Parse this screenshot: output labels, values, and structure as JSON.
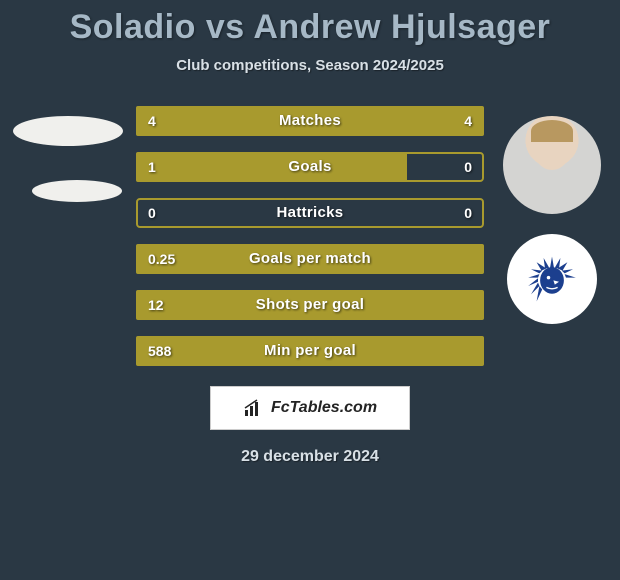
{
  "title": "Soladio vs Andrew Hjulsager",
  "subtitle": "Club competitions, Season 2024/2025",
  "date": "29 december 2024",
  "footer_brand": "FcTables.com",
  "colors": {
    "background": "#2a3844",
    "title": "#a6b8c6",
    "text_light": "#d8e0e6",
    "bar_olive": "#a89a2e",
    "bar_outline": "#a89a2e"
  },
  "stats": [
    {
      "label": "Matches",
      "left_val": "4",
      "right_val": "4",
      "left_pct": 50,
      "right_pct": 50,
      "color": "#a89a2e"
    },
    {
      "label": "Goals",
      "left_val": "1",
      "right_val": "0",
      "left_pct": 78,
      "right_pct": 0,
      "color": "#a89a2e"
    },
    {
      "label": "Hattricks",
      "left_val": "0",
      "right_val": "0",
      "left_pct": 0,
      "right_pct": 0,
      "color": "#a89a2e"
    },
    {
      "label": "Goals per match",
      "left_val": "0.25",
      "right_val": "",
      "left_pct": 100,
      "right_pct": 0,
      "color": "#a89a2e"
    },
    {
      "label": "Shots per goal",
      "left_val": "12",
      "right_val": "",
      "left_pct": 100,
      "right_pct": 0,
      "color": "#a89a2e"
    },
    {
      "label": "Min per goal",
      "left_val": "588",
      "right_val": "",
      "left_pct": 100,
      "right_pct": 0,
      "color": "#a89a2e"
    }
  ]
}
